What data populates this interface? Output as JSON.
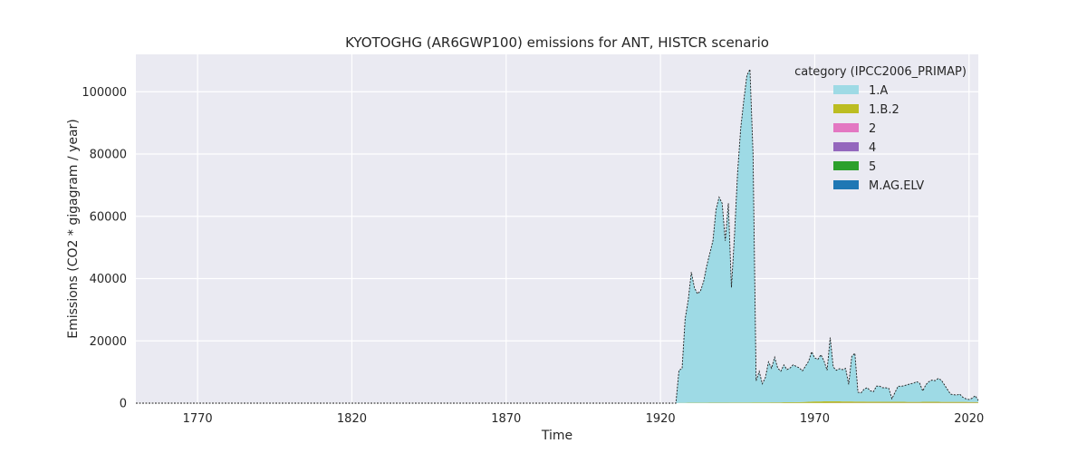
{
  "chart_data": {
    "type": "area",
    "stacked": true,
    "title": "KYOTOGHG (AR6GWP100) emissions for ANT, HISTCR scenario",
    "xlabel": "Time",
    "ylabel": "Emissions (CO2 * gigagram / year)",
    "xlim": [
      1750,
      2023
    ],
    "ylim": [
      0,
      112000
    ],
    "xticks": [
      1770,
      1820,
      1870,
      1920,
      1970,
      2020
    ],
    "yticks": [
      0,
      20000,
      40000,
      60000,
      80000,
      100000
    ],
    "grid": true,
    "legend": {
      "title": "category (IPCC2006_PRIMAP)",
      "position": "top-right"
    },
    "series": [
      {
        "name": "1.A",
        "color": "#9edae5",
        "points": [
          [
            1750,
            0
          ],
          [
            1924,
            0
          ],
          [
            1925,
            0
          ],
          [
            1926,
            10500
          ],
          [
            1927,
            11000
          ],
          [
            1928,
            27000
          ],
          [
            1929,
            33000
          ],
          [
            1930,
            42000
          ],
          [
            1931,
            37000
          ],
          [
            1932,
            35000
          ],
          [
            1933,
            36000
          ],
          [
            1934,
            39000
          ],
          [
            1935,
            44000
          ],
          [
            1936,
            48000
          ],
          [
            1937,
            52000
          ],
          [
            1938,
            62000
          ],
          [
            1939,
            66000
          ],
          [
            1940,
            64000
          ],
          [
            1941,
            52000
          ],
          [
            1942,
            64000
          ],
          [
            1943,
            37000
          ],
          [
            1944,
            54000
          ],
          [
            1945,
            74000
          ],
          [
            1946,
            88000
          ],
          [
            1947,
            97000
          ],
          [
            1948,
            105000
          ],
          [
            1949,
            107000
          ],
          [
            1950,
            80000
          ],
          [
            1951,
            7000
          ],
          [
            1952,
            10000
          ],
          [
            1953,
            6000
          ],
          [
            1954,
            8000
          ],
          [
            1955,
            13000
          ],
          [
            1956,
            11000
          ],
          [
            1957,
            14500
          ],
          [
            1958,
            11000
          ],
          [
            1959,
            10000
          ],
          [
            1960,
            12000
          ],
          [
            1961,
            10500
          ],
          [
            1962,
            11000
          ],
          [
            1963,
            12000
          ],
          [
            1964,
            11500
          ],
          [
            1965,
            11000
          ],
          [
            1966,
            10000
          ],
          [
            1967,
            11500
          ],
          [
            1968,
            13000
          ],
          [
            1969,
            16000
          ],
          [
            1970,
            14000
          ],
          [
            1971,
            13500
          ],
          [
            1972,
            15000
          ],
          [
            1973,
            13000
          ],
          [
            1974,
            10000
          ],
          [
            1975,
            20500
          ],
          [
            1976,
            11000
          ],
          [
            1977,
            10000
          ],
          [
            1978,
            10500
          ],
          [
            1979,
            10200
          ],
          [
            1980,
            10600
          ],
          [
            1981,
            5500
          ],
          [
            1982,
            14500
          ],
          [
            1983,
            15500
          ],
          [
            1984,
            3000
          ],
          [
            1985,
            2800
          ],
          [
            1986,
            4000
          ],
          [
            1987,
            4500
          ],
          [
            1988,
            3500
          ],
          [
            1989,
            3200
          ],
          [
            1990,
            5000
          ],
          [
            1991,
            5000
          ],
          [
            1992,
            4500
          ],
          [
            1993,
            4500
          ],
          [
            1994,
            4300
          ],
          [
            1995,
            1000
          ],
          [
            1996,
            3000
          ],
          [
            1997,
            5000
          ],
          [
            1998,
            5000
          ],
          [
            1999,
            5200
          ],
          [
            2000,
            5500
          ],
          [
            2001,
            5800
          ],
          [
            2002,
            6000
          ],
          [
            2003,
            6500
          ],
          [
            2004,
            6000
          ],
          [
            2005,
            3500
          ],
          [
            2006,
            5500
          ],
          [
            2007,
            6500
          ],
          [
            2008,
            7000
          ],
          [
            2009,
            6800
          ],
          [
            2010,
            7500
          ],
          [
            2011,
            7000
          ],
          [
            2012,
            5500
          ],
          [
            2013,
            4000
          ],
          [
            2014,
            2500
          ],
          [
            2015,
            2300
          ],
          [
            2016,
            2200
          ],
          [
            2017,
            2500
          ],
          [
            2018,
            1500
          ],
          [
            2019,
            1000
          ],
          [
            2020,
            800
          ],
          [
            2021,
            1200
          ],
          [
            2022,
            2000
          ],
          [
            2023,
            500
          ]
        ]
      },
      {
        "name": "1.B.2",
        "color": "#bcbd22",
        "points": [
          [
            1750,
            0
          ],
          [
            1925,
            0
          ],
          [
            1926,
            80
          ],
          [
            1950,
            150
          ],
          [
            1965,
            250
          ],
          [
            1970,
            450
          ],
          [
            1975,
            500
          ],
          [
            1980,
            450
          ],
          [
            1990,
            350
          ],
          [
            2000,
            300
          ],
          [
            2010,
            300
          ],
          [
            2023,
            250
          ]
        ]
      },
      {
        "name": "2",
        "color": "#e377c2",
        "points": [
          [
            1750,
            0
          ],
          [
            1960,
            0
          ],
          [
            1970,
            20
          ],
          [
            1990,
            40
          ],
          [
            2010,
            50
          ],
          [
            2023,
            50
          ]
        ]
      },
      {
        "name": "4",
        "color": "#9467bd",
        "points": [
          [
            1750,
            0
          ],
          [
            1926,
            0
          ],
          [
            1950,
            30
          ],
          [
            1980,
            40
          ],
          [
            2023,
            40
          ]
        ]
      },
      {
        "name": "5",
        "color": "#2ca02c",
        "points": [
          [
            1750,
            0
          ],
          [
            1926,
            0
          ],
          [
            1950,
            20
          ],
          [
            1980,
            30
          ],
          [
            2023,
            30
          ]
        ]
      },
      {
        "name": "M.AG.ELV",
        "color": "#1f77b4",
        "points": [
          [
            1750,
            0
          ],
          [
            2023,
            0
          ]
        ]
      }
    ]
  }
}
